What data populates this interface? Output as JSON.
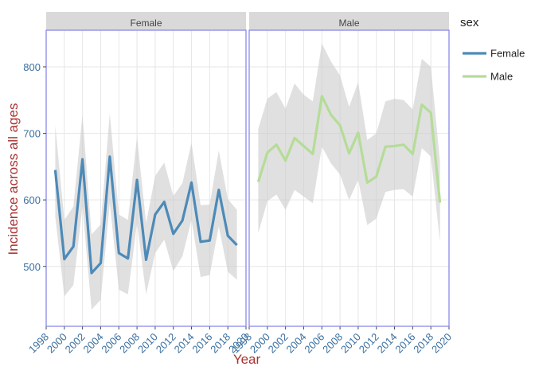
{
  "chart_data": {
    "type": "line",
    "xlabel": "Year",
    "ylabel": "Incidence across all ages",
    "legend": {
      "title": "sex",
      "position": "right"
    },
    "ylim": [
      410,
      855
    ],
    "yticks": [
      500,
      600,
      700,
      800
    ],
    "grid": true,
    "facets": [
      {
        "label": "Female",
        "xlim": [
          1998,
          2020
        ],
        "xticks": [
          1998,
          2000,
          2002,
          2004,
          2006,
          2008,
          2010,
          2012,
          2014,
          2016,
          2018,
          2020
        ],
        "series": {
          "name": "Female",
          "color": "#4d8ab8",
          "x": [
            1999,
            2000,
            2001,
            2002,
            2003,
            2004,
            2005,
            2006,
            2007,
            2008,
            2009,
            2010,
            2011,
            2012,
            2013,
            2014,
            2015,
            2016,
            2017,
            2018,
            2019
          ],
          "y": [
            645,
            511,
            530,
            661,
            490,
            505,
            665,
            520,
            512,
            630,
            510,
            578,
            597,
            549,
            569,
            626,
            537,
            539,
            615,
            546,
            532
          ],
          "lower": [
            575,
            455,
            472,
            590,
            435,
            450,
            595,
            465,
            458,
            565,
            458,
            520,
            540,
            493,
            515,
            570,
            484,
            487,
            560,
            492,
            480
          ],
          "upper": [
            712,
            570,
            590,
            728,
            548,
            563,
            730,
            578,
            570,
            695,
            565,
            636,
            656,
            606,
            625,
            686,
            592,
            593,
            674,
            601,
            585
          ]
        }
      },
      {
        "label": "Male",
        "xlim": [
          1998,
          2020
        ],
        "xticks": [
          1998,
          2000,
          2002,
          2004,
          2006,
          2008,
          2010,
          2012,
          2014,
          2016,
          2018,
          2020
        ],
        "series": {
          "name": "Male",
          "color": "#b5dc98",
          "x": [
            1999,
            2000,
            2001,
            2002,
            2003,
            2004,
            2005,
            2006,
            2007,
            2008,
            2009,
            2010,
            2011,
            2012,
            2013,
            2014,
            2015,
            2016,
            2017,
            2018,
            2019
          ],
          "y": [
            627,
            671,
            683,
            659,
            693,
            681,
            669,
            756,
            728,
            712,
            670,
            701,
            626,
            635,
            680,
            681,
            683,
            669,
            743,
            731,
            596
          ],
          "lower": [
            550,
            598,
            608,
            585,
            615,
            605,
            595,
            680,
            655,
            638,
            600,
            630,
            562,
            572,
            612,
            615,
            616,
            605,
            678,
            665,
            537
          ],
          "upper": [
            707,
            752,
            762,
            737,
            775,
            758,
            748,
            835,
            808,
            787,
            740,
            777,
            690,
            700,
            748,
            752,
            750,
            736,
            812,
            800,
            658
          ]
        }
      }
    ]
  }
}
